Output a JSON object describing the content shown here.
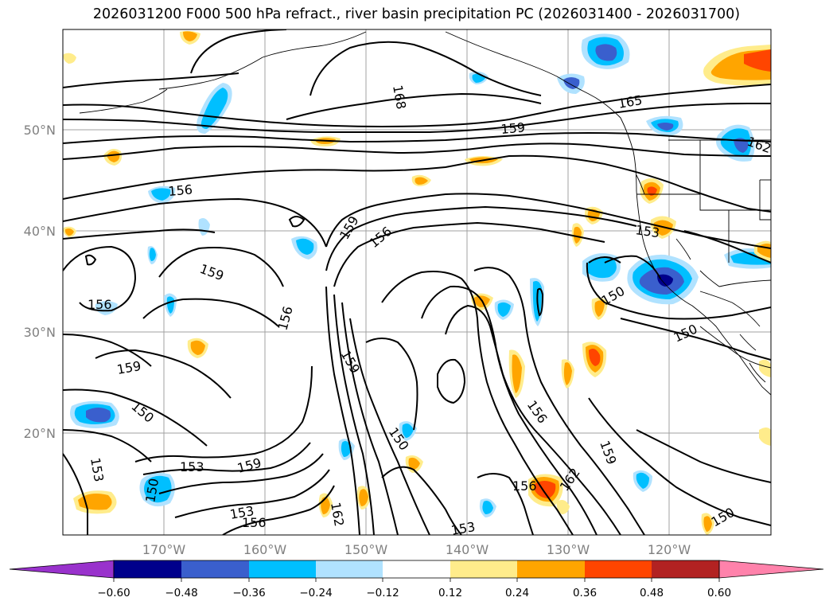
{
  "title": "2026031200 F000 500 hPa refract., river basin precipitation PC (2026031400 - 2026031700)",
  "colors": {
    "background": "#ffffff",
    "contour": "#000000",
    "grid": "#a0a0a0",
    "coast": "#000000"
  },
  "map": {
    "lon_range": [
      -180,
      -110
    ],
    "lat_range": [
      10,
      60
    ],
    "lat_labels": [
      "50°N",
      "40°N",
      "30°N",
      "20°N"
    ],
    "lon_labels": [
      "170°W",
      "160°W",
      "150°W",
      "140°W",
      "130°W",
      "120°W"
    ],
    "contour_labels": [
      "168",
      "165",
      "159",
      "162",
      "156",
      "159",
      "156",
      "153",
      "159",
      "156",
      "156",
      "159",
      "150",
      "150",
      "159",
      "150",
      "153",
      "153",
      "150",
      "159",
      "153",
      "156",
      "162",
      "150",
      "156",
      "162",
      "159",
      "153",
      "150",
      "156"
    ]
  },
  "colorbar": {
    "colors": [
      "#9932cc",
      "#00008b",
      "#3a5fcd",
      "#00bfff",
      "#b0e2ff",
      "#ffffff",
      "#ffec8b",
      "#ffa500",
      "#ff4500",
      "#b22222",
      "#ff82ab"
    ],
    "tick_labels": [
      "−0.60",
      "−0.48",
      "−0.36",
      "−0.24",
      "−0.12",
      "0.12",
      "0.24",
      "0.36",
      "0.48",
      "0.60"
    ]
  }
}
